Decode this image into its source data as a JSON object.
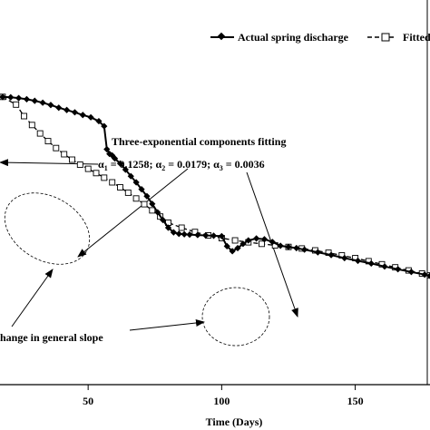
{
  "chart_data": {
    "type": "line",
    "xlabel": "Time (Days)",
    "x_ticks": [
      50,
      100,
      150
    ],
    "xlim": [
      17,
      178
    ],
    "ylim": [
      0,
      1
    ],
    "y_scale_shown": false,
    "grid": false,
    "legend_placement": "top-right",
    "legend": {
      "actual_label": "Actual spring discharge",
      "fitted_label": "Fitted"
    },
    "annotations": {
      "title_line1": "Three-exponential components fitting",
      "alpha_line": "α1 = 0.1258; α2 = 0.0179; α3 = 0.0036",
      "slope_label": "hange in general slope"
    },
    "series": [
      {
        "name": "Actual spring discharge",
        "style": "solid-diamond",
        "color": "#000000",
        "x": [
          18,
          21,
          24,
          27,
          30,
          33,
          36,
          39,
          42,
          45,
          48,
          51,
          54,
          56,
          57,
          58,
          59,
          60,
          62,
          64,
          66,
          68,
          70,
          72,
          74,
          76,
          78,
          80,
          82,
          84,
          86,
          88,
          91,
          94,
          97,
          100,
          102,
          104,
          106,
          108,
          110,
          113,
          116,
          119,
          122,
          125,
          128,
          131,
          136,
          141,
          146,
          151,
          156,
          161,
          166,
          171,
          176,
          178
        ],
        "y": [
          0.748,
          0.747,
          0.745,
          0.742,
          0.738,
          0.733,
          0.727,
          0.72,
          0.714,
          0.708,
          0.701,
          0.695,
          0.685,
          0.672,
          0.612,
          0.6,
          0.596,
          0.588,
          0.575,
          0.559,
          0.542,
          0.526,
          0.508,
          0.49,
          0.47,
          0.448,
          0.428,
          0.408,
          0.396,
          0.392,
          0.391,
          0.39,
          0.389,
          0.388,
          0.387,
          0.386,
          0.36,
          0.347,
          0.355,
          0.366,
          0.375,
          0.38,
          0.378,
          0.371,
          0.361,
          0.358,
          0.355,
          0.351,
          0.344,
          0.337,
          0.329,
          0.322,
          0.315,
          0.307,
          0.3,
          0.293,
          0.286,
          0.283
        ]
      },
      {
        "name": "Fitted",
        "style": "dashed-square",
        "color": "#000000",
        "x": [
          18,
          23,
          26,
          29,
          32,
          35,
          38,
          41,
          44,
          47,
          50,
          53,
          56,
          59,
          62,
          65,
          68,
          71,
          74,
          77,
          80,
          85,
          90,
          95,
          100,
          105,
          110,
          115,
          120,
          125,
          130,
          135,
          140,
          145,
          150,
          155,
          160,
          165,
          170,
          175,
          178
        ],
        "y": [
          0.748,
          0.728,
          0.698,
          0.675,
          0.653,
          0.633,
          0.615,
          0.599,
          0.585,
          0.572,
          0.561,
          0.55,
          0.538,
          0.526,
          0.513,
          0.499,
          0.484,
          0.469,
          0.453,
          0.437,
          0.421,
          0.408,
          0.397,
          0.388,
          0.381,
          0.375,
          0.37,
          0.366,
          0.362,
          0.358,
          0.354,
          0.349,
          0.343,
          0.336,
          0.329,
          0.321,
          0.313,
          0.305,
          0.297,
          0.289,
          0.284
        ]
      }
    ]
  }
}
